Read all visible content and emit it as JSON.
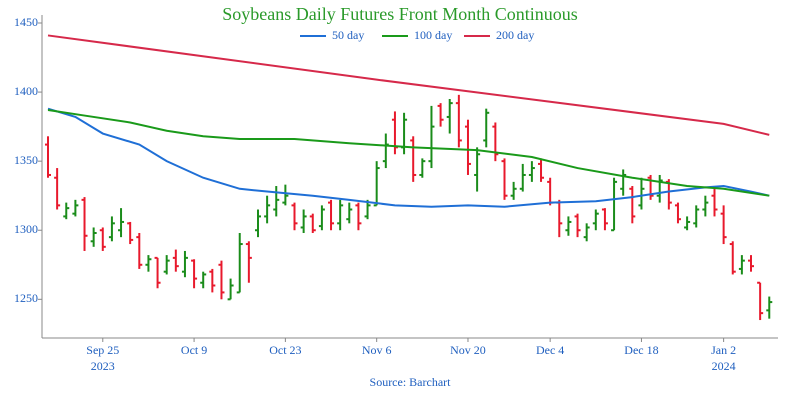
{
  "chart_data": {
    "type": "ohlc",
    "title": "Soybeans Daily Futures Front Month Continuous",
    "source": "Source: Barchart",
    "x": [
      "2023-09-15",
      "2023-09-18",
      "2023-09-19",
      "2023-09-20",
      "2023-09-21",
      "2023-09-22",
      "2023-09-25",
      "2023-09-26",
      "2023-09-27",
      "2023-09-28",
      "2023-09-29",
      "2023-10-02",
      "2023-10-03",
      "2023-10-04",
      "2023-10-05",
      "2023-10-06",
      "2023-10-09",
      "2023-10-10",
      "2023-10-11",
      "2023-10-12",
      "2023-10-13",
      "2023-10-16",
      "2023-10-17",
      "2023-10-18",
      "2023-10-19",
      "2023-10-20",
      "2023-10-23",
      "2023-10-24",
      "2023-10-25",
      "2023-10-26",
      "2023-10-27",
      "2023-10-30",
      "2023-10-31",
      "2023-11-01",
      "2023-11-02",
      "2023-11-03",
      "2023-11-06",
      "2023-11-07",
      "2023-11-08",
      "2023-11-09",
      "2023-11-10",
      "2023-11-13",
      "2023-11-14",
      "2023-11-15",
      "2023-11-16",
      "2023-11-17",
      "2023-11-20",
      "2023-11-21",
      "2023-11-22",
      "2023-11-24",
      "2023-11-27",
      "2023-11-28",
      "2023-11-29",
      "2023-11-30",
      "2023-12-01",
      "2023-12-04",
      "2023-12-05",
      "2023-12-06",
      "2023-12-07",
      "2023-12-08",
      "2023-12-11",
      "2023-12-12",
      "2023-12-13",
      "2023-12-14",
      "2023-12-15",
      "2023-12-18",
      "2023-12-19",
      "2023-12-20",
      "2023-12-21",
      "2023-12-22",
      "2023-12-26",
      "2023-12-27",
      "2023-12-28",
      "2023-12-29",
      "2024-01-02",
      "2024-01-03",
      "2024-01-04",
      "2024-01-05",
      "2024-01-08",
      "2024-01-09"
    ],
    "ohlc": {
      "open": [
        1362,
        1338,
        1310,
        1312,
        1322,
        1292,
        1300,
        1295,
        1300,
        1305,
        1295,
        1275,
        1280,
        1270,
        1280,
        1270,
        1278,
        1262,
        1270,
        1275,
        1250,
        1255,
        1290,
        1300,
        1310,
        1315,
        1320,
        1318,
        1302,
        1310,
        1303,
        1320,
        1305,
        1308,
        1318,
        1310,
        1318,
        1350,
        1380,
        1360,
        1365,
        1340,
        1350,
        1390,
        1382,
        1392,
        1375,
        1340,
        1365,
        1375,
        1350,
        1325,
        1330,
        1340,
        1348,
        1335,
        1320,
        1300,
        1310,
        1295,
        1305,
        1315,
        1300,
        1330,
        1330,
        1318,
        1338,
        1325,
        1335,
        1318,
        1302,
        1305,
        1315,
        1325,
        1312,
        1290,
        1272,
        1278,
        1262,
        1242
      ],
      "high": [
        1368,
        1345,
        1320,
        1322,
        1324,
        1302,
        1302,
        1310,
        1316,
        1306,
        1298,
        1282,
        1280,
        1282,
        1286,
        1285,
        1279,
        1270,
        1272,
        1278,
        1265,
        1298,
        1292,
        1315,
        1325,
        1332,
        1333,
        1320,
        1315,
        1312,
        1318,
        1322,
        1322,
        1320,
        1320,
        1322,
        1350,
        1370,
        1386,
        1385,
        1368,
        1352,
        1390,
        1392,
        1395,
        1398,
        1380,
        1360,
        1388,
        1378,
        1352,
        1335,
        1348,
        1350,
        1352,
        1338,
        1322,
        1310,
        1312,
        1305,
        1315,
        1316,
        1338,
        1344,
        1332,
        1338,
        1340,
        1340,
        1337,
        1320,
        1310,
        1318,
        1325,
        1330,
        1318,
        1292,
        1282,
        1282,
        1262,
        1252
      ],
      "low": [
        1338,
        1315,
        1308,
        1310,
        1285,
        1288,
        1285,
        1292,
        1295,
        1290,
        1272,
        1270,
        1258,
        1268,
        1270,
        1266,
        1258,
        1258,
        1255,
        1250,
        1250,
        1255,
        1262,
        1295,
        1305,
        1310,
        1318,
        1300,
        1298,
        1298,
        1300,
        1300,
        1300,
        1305,
        1300,
        1308,
        1318,
        1345,
        1355,
        1355,
        1335,
        1338,
        1345,
        1375,
        1370,
        1360,
        1340,
        1328,
        1360,
        1350,
        1322,
        1322,
        1328,
        1335,
        1335,
        1318,
        1295,
        1296,
        1295,
        1292,
        1300,
        1300,
        1300,
        1325,
        1305,
        1315,
        1322,
        1320,
        1315,
        1305,
        1300,
        1302,
        1310,
        1310,
        1290,
        1268,
        1268,
        1270,
        1235,
        1236
      ],
      "close": [
        1340,
        1318,
        1316,
        1318,
        1296,
        1298,
        1288,
        1305,
        1306,
        1293,
        1275,
        1279,
        1262,
        1278,
        1274,
        1280,
        1265,
        1268,
        1260,
        1255,
        1260,
        1290,
        1280,
        1310,
        1318,
        1322,
        1325,
        1305,
        1310,
        1300,
        1315,
        1305,
        1318,
        1315,
        1305,
        1318,
        1345,
        1362,
        1360,
        1380,
        1340,
        1350,
        1375,
        1380,
        1392,
        1365,
        1348,
        1355,
        1385,
        1355,
        1325,
        1330,
        1340,
        1345,
        1338,
        1320,
        1305,
        1306,
        1300,
        1302,
        1312,
        1305,
        1335,
        1340,
        1310,
        1330,
        1325,
        1336,
        1320,
        1308,
        1306,
        1315,
        1320,
        1315,
        1295,
        1270,
        1278,
        1274,
        1240,
        1248
      ],
      "up_color": "#1a8c1a",
      "down_color": "#e8192c"
    },
    "series": [
      {
        "name": "50 day",
        "color": "#1f6fd6",
        "x": [
          "2023-09-15",
          "2023-09-20",
          "2023-09-25",
          "2023-09-29",
          "2023-10-04",
          "2023-10-10",
          "2023-10-16",
          "2023-10-19",
          "2023-10-26",
          "2023-11-01",
          "2023-11-08",
          "2023-11-14",
          "2023-11-20",
          "2023-11-27",
          "2023-12-04",
          "2023-12-11",
          "2023-12-15",
          "2023-12-21",
          "2023-12-28",
          "2024-01-02",
          "2024-01-05",
          "2024-01-09"
        ],
        "values": [
          1388,
          1382,
          1370,
          1362,
          1350,
          1338,
          1330,
          1328,
          1325,
          1322,
          1318,
          1317,
          1318,
          1317,
          1320,
          1321,
          1324,
          1328,
          1331,
          1332,
          1328,
          1325
        ]
      },
      {
        "name": "100 day",
        "color": "#1a9a1a",
        "x": [
          "2023-09-15",
          "2023-09-21",
          "2023-09-28",
          "2023-10-04",
          "2023-10-10",
          "2023-10-16",
          "2023-10-24",
          "2023-11-01",
          "2023-11-10",
          "2023-11-21",
          "2023-11-30",
          "2023-12-07",
          "2023-12-15",
          "2023-12-26",
          "2024-01-02",
          "2024-01-09"
        ],
        "values": [
          1387,
          1383,
          1378,
          1372,
          1368,
          1366,
          1366,
          1363,
          1360,
          1358,
          1353,
          1345,
          1338,
          1332,
          1330,
          1325
        ]
      },
      {
        "name": "200 day",
        "color": "#d6294a",
        "x": [
          "2023-09-15",
          "2023-11-06",
          "2024-01-02",
          "2024-01-09"
        ],
        "values": [
          1441,
          1409,
          1377,
          1369
        ]
      }
    ],
    "ylim": [
      1222,
      1450
    ],
    "yticks": [
      1250,
      1300,
      1350,
      1400,
      1450
    ],
    "xticks": [
      {
        "value": "2023-09-25",
        "label": "Sep 25",
        "year": "2023"
      },
      {
        "value": "2023-10-09",
        "label": "Oct 9"
      },
      {
        "value": "2023-10-23",
        "label": "Oct 23"
      },
      {
        "value": "2023-11-06",
        "label": "Nov 6"
      },
      {
        "value": "2023-11-20",
        "label": "Nov 20"
      },
      {
        "value": "2023-12-04",
        "label": "Dec 4"
      },
      {
        "value": "2023-12-18",
        "label": "Dec 18"
      },
      {
        "value": "2024-01-02",
        "label": "Jan 2",
        "year": "2024"
      }
    ]
  }
}
